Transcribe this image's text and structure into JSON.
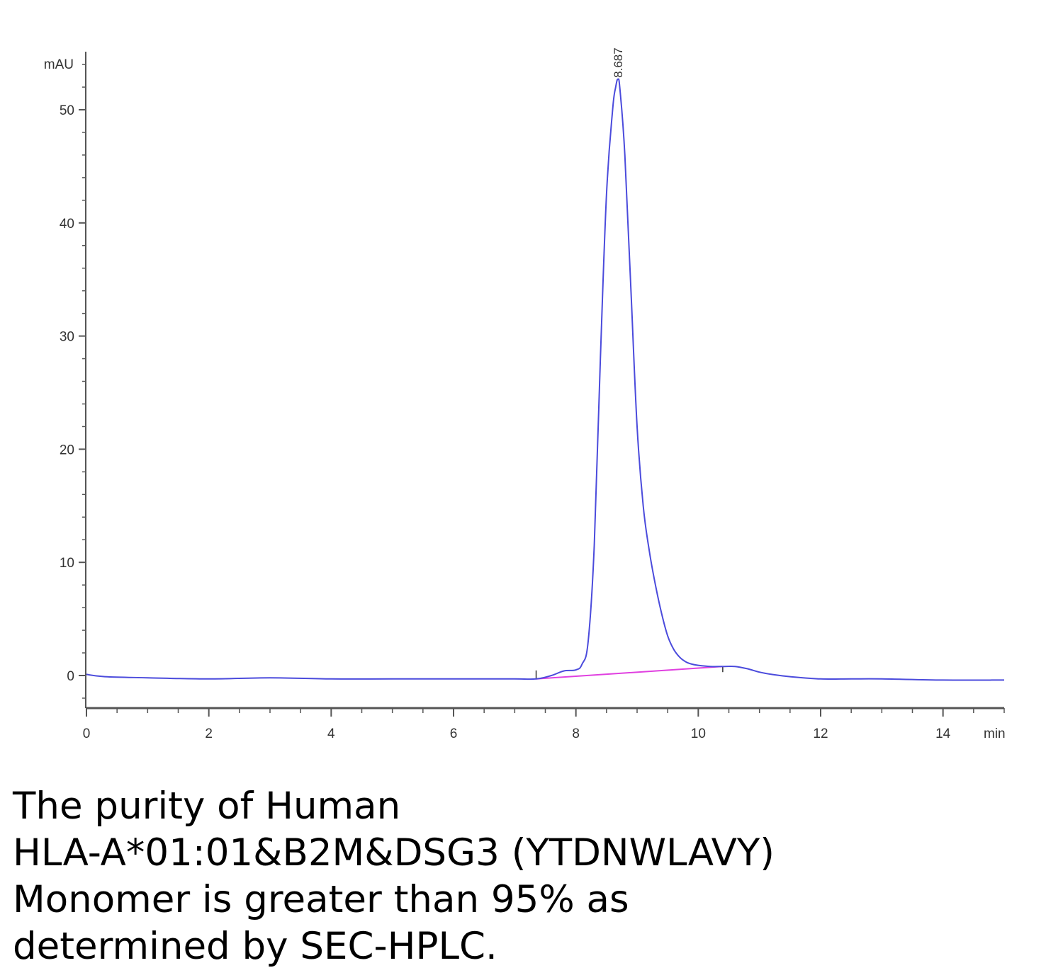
{
  "chart_data": {
    "type": "line",
    "title": "",
    "xlabel": "min",
    "ylabel": "mAU",
    "xlim": [
      0,
      15
    ],
    "ylim": [
      -3,
      55
    ],
    "x_ticks": [
      0,
      2,
      4,
      6,
      8,
      10,
      12,
      14
    ],
    "y_ticks": [
      0,
      10,
      20,
      30,
      40,
      50
    ],
    "x_tick_labels": [
      "0",
      "2",
      "4",
      "6",
      "8",
      "10",
      "12",
      "14"
    ],
    "y_tick_labels": [
      "0",
      "10",
      "20",
      "30",
      "40",
      "50"
    ],
    "series": [
      {
        "color": "#4b4bdc",
        "x": [
          0,
          0.3,
          1,
          2,
          3,
          4,
          5,
          6,
          7,
          7.35,
          7.6,
          7.8,
          8.0,
          8.1,
          8.2,
          8.3,
          8.4,
          8.5,
          8.6,
          8.65,
          8.687,
          8.72,
          8.8,
          8.9,
          9.0,
          9.1,
          9.2,
          9.3,
          9.4,
          9.5,
          9.6,
          9.7,
          9.8,
          9.9,
          10.0,
          10.2,
          10.4,
          10.6,
          10.8,
          11.0,
          11.2,
          11.5,
          12.0,
          12.5,
          13,
          14,
          15
        ],
        "y": [
          0.1,
          -0.1,
          -0.2,
          -0.3,
          -0.2,
          -0.3,
          -0.3,
          -0.3,
          -0.3,
          -0.3,
          0.0,
          0.4,
          0.5,
          1.0,
          3.0,
          11.5,
          28.0,
          42.5,
          50.0,
          52.0,
          52.7,
          51.8,
          46.0,
          34.0,
          22.0,
          15.0,
          11.0,
          8.0,
          5.5,
          3.5,
          2.3,
          1.6,
          1.2,
          1.0,
          0.9,
          0.8,
          0.8,
          0.8,
          0.6,
          0.3,
          0.1,
          -0.1,
          -0.3,
          -0.3,
          -0.3,
          -0.4,
          -0.4
        ]
      },
      {
        "color": "#e040e0",
        "x": [
          7.35,
          10.4
        ],
        "y": [
          -0.3,
          0.8
        ]
      }
    ],
    "annotations": [
      {
        "text": "8.687",
        "x": 8.687,
        "y": 52.7
      }
    ],
    "grid": false,
    "legend": "none"
  },
  "caption": {
    "lines": [
      "The purity of Human",
      "HLA-A*01:01&B2M&DSG3 (YTDNWLAVY)",
      "Monomer is greater than 95% as",
      "determined by SEC-HPLC."
    ]
  }
}
